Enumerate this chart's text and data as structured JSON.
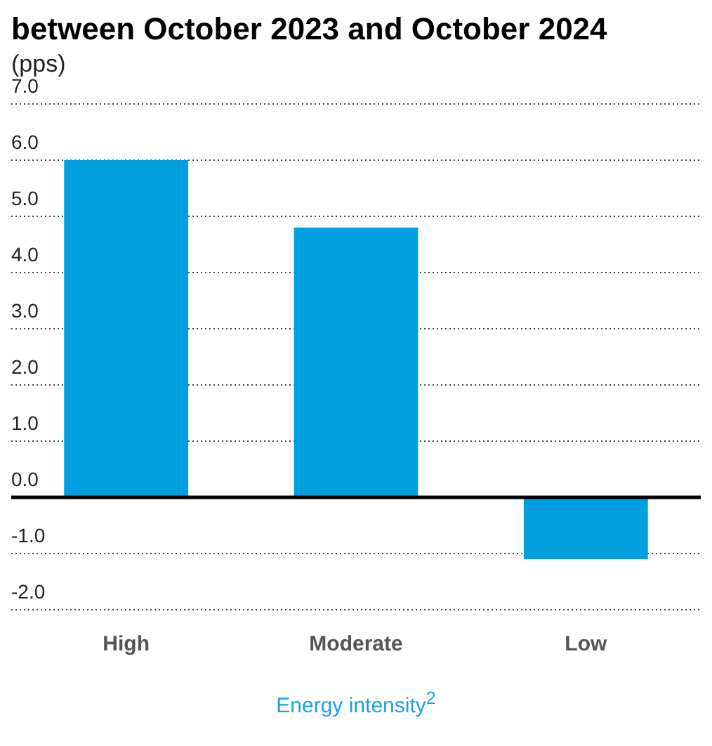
{
  "chart_data": {
    "type": "bar",
    "title": "between October 2023 and October 2024",
    "subtitle": "(pps)",
    "xlabel": "Energy intensity$^{2}$",
    "categories": [
      "High",
      "Moderate",
      "Low"
    ],
    "values": [
      6.0,
      4.8,
      -1.1
    ],
    "color": "#009fe0",
    "ylim": [
      -2,
      7
    ],
    "yticks": [
      {
        "value": -2,
        "label": "-2.0"
      },
      {
        "value": -1,
        "label": "-1.0"
      },
      {
        "value": 0,
        "label": "0.0"
      },
      {
        "value": 1,
        "label": "1.0"
      },
      {
        "value": 2,
        "label": "2.0"
      },
      {
        "value": 3,
        "label": "3.0"
      },
      {
        "value": 4,
        "label": "4.0"
      },
      {
        "value": 5,
        "label": "5.0"
      },
      {
        "value": 6,
        "label": "6.0"
      },
      {
        "value": 7,
        "label": "7.0"
      }
    ],
    "grid": "y",
    "legend": false
  }
}
